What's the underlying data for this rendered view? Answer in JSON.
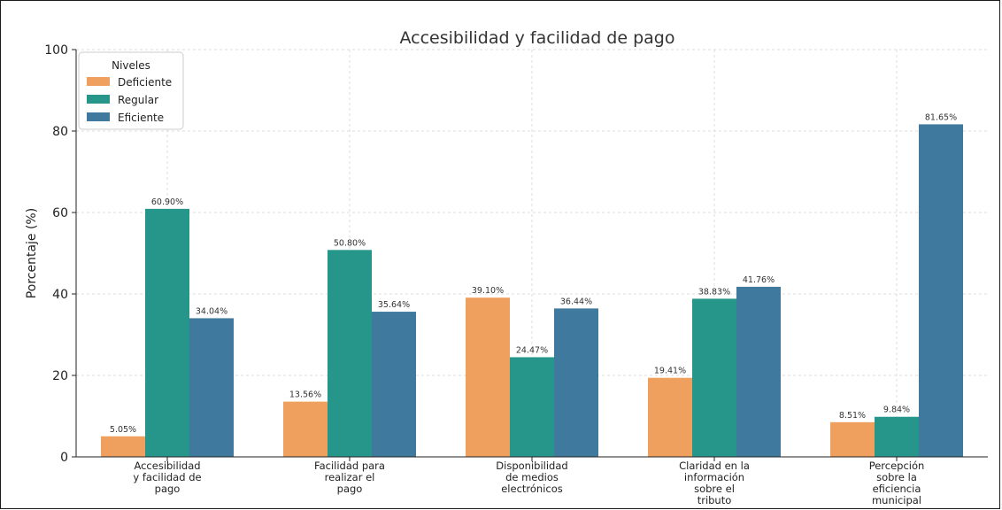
{
  "chart_data": {
    "type": "bar",
    "title": "Accesibilidad y facilidad de pago",
    "xlabel": "",
    "ylabel": "Porcentaje (%)",
    "ylim": [
      0,
      100
    ],
    "yticks": [
      0,
      20,
      40,
      60,
      80,
      100
    ],
    "grid": true,
    "legend": {
      "title": "Niveles",
      "position": "top-left"
    },
    "categories": [
      [
        "Accesibilidad",
        "y facilidad de",
        "pago"
      ],
      [
        "Facilidad para",
        "realizar el",
        "pago"
      ],
      [
        "Disponibilidad",
        "de medios",
        "electrónicos"
      ],
      [
        "Claridad en la",
        "información",
        "sobre el",
        "tributo"
      ],
      [
        "Percepción",
        "sobre la",
        "eficiencia",
        "municipal"
      ]
    ],
    "series": [
      {
        "name": "Deficiente",
        "color": "#f0a05e",
        "values": [
          5.05,
          13.56,
          39.1,
          19.41,
          8.51
        ],
        "labels": [
          "5.05%",
          "13.56%",
          "39.10%",
          "19.41%",
          "8.51%"
        ]
      },
      {
        "name": "Regular",
        "color": "#26958a",
        "values": [
          60.9,
          50.8,
          24.47,
          38.83,
          9.84
        ],
        "labels": [
          "60.90%",
          "50.80%",
          "24.47%",
          "38.83%",
          "9.84%"
        ]
      },
      {
        "name": "Eficiente",
        "color": "#3f7a9e",
        "values": [
          34.04,
          35.64,
          36.44,
          41.76,
          81.65
        ],
        "labels": [
          "34.04%",
          "35.64%",
          "36.44%",
          "41.76%",
          "81.65%"
        ]
      }
    ]
  }
}
